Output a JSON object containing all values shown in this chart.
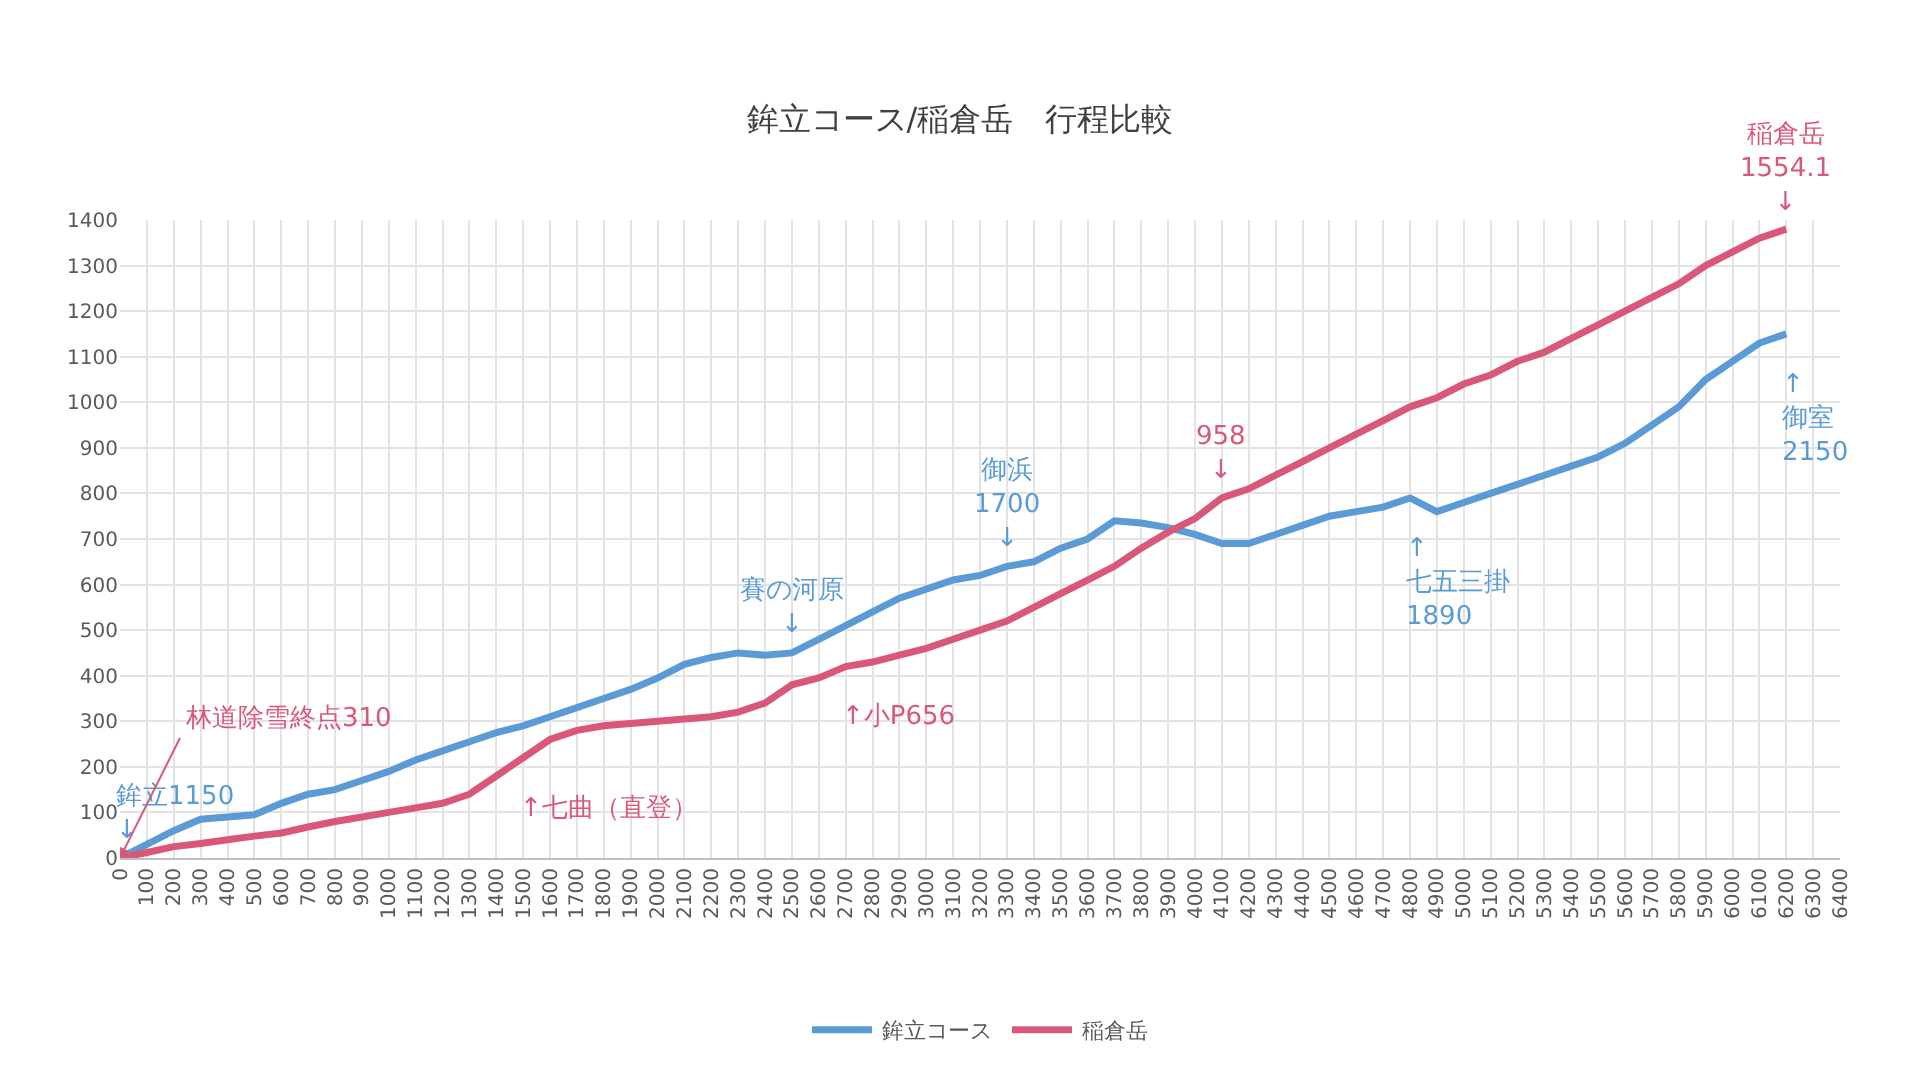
{
  "chart_data": {
    "type": "line",
    "title": "鉾立コース/稲倉岳　行程比較",
    "x": [
      0,
      100,
      200,
      300,
      400,
      500,
      600,
      700,
      800,
      900,
      1000,
      1100,
      1200,
      1300,
      1400,
      1500,
      1600,
      1700,
      1800,
      1900,
      2000,
      2100,
      2200,
      2300,
      2400,
      2500,
      2600,
      2700,
      2800,
      2900,
      3000,
      3100,
      3200,
      3300,
      3400,
      3500,
      3600,
      3700,
      3800,
      3900,
      4000,
      4100,
      4200,
      4300,
      4400,
      4500,
      4600,
      4700,
      4800,
      4900,
      5000,
      5100,
      5200,
      5300,
      5400,
      5500,
      5600,
      5700,
      5800,
      5900,
      6000,
      6100,
      6200
    ],
    "series": [
      {
        "name": "鉾立コース",
        "color": "#5b9bd5",
        "values": [
          0,
          30,
          60,
          85,
          90,
          95,
          120,
          140,
          150,
          170,
          190,
          215,
          235,
          255,
          275,
          290,
          310,
          330,
          350,
          370,
          395,
          425,
          440,
          450,
          445,
          450,
          480,
          510,
          540,
          570,
          590,
          610,
          620,
          640,
          650,
          680,
          700,
          740,
          735,
          725,
          710,
          690,
          690,
          710,
          730,
          750,
          760,
          770,
          790,
          760,
          780,
          800,
          820,
          840,
          860,
          880,
          910,
          950,
          990,
          1050,
          1090,
          1130,
          1150
        ]
      },
      {
        "name": "稲倉岳",
        "color": "#d9587a",
        "values": [
          0,
          12,
          25,
          32,
          40,
          48,
          55,
          68,
          80,
          90,
          100,
          110,
          120,
          140,
          180,
          220,
          260,
          280,
          290,
          295,
          300,
          305,
          310,
          320,
          340,
          380,
          395,
          420,
          430,
          445,
          460,
          480,
          500,
          520,
          550,
          580,
          610,
          640,
          680,
          715,
          745,
          790,
          810,
          840,
          870,
          900,
          930,
          960,
          990,
          1010,
          1040,
          1060,
          1090,
          1110,
          1140,
          1170,
          1200,
          1230,
          1260,
          1300,
          1330,
          1360,
          1380
        ]
      }
    ],
    "xlim": [
      0,
      6400
    ],
    "xticks": [
      0,
      100,
      200,
      300,
      400,
      500,
      600,
      700,
      800,
      900,
      1000,
      1100,
      1200,
      1300,
      1400,
      1500,
      1600,
      1700,
      1800,
      1900,
      2000,
      2100,
      2200,
      2300,
      2400,
      2500,
      2600,
      2700,
      2800,
      2900,
      3000,
      3100,
      3200,
      3300,
      3400,
      3500,
      3600,
      3700,
      3800,
      3900,
      4000,
      4100,
      4200,
      4300,
      4400,
      4500,
      4600,
      4700,
      4800,
      4900,
      5000,
      5100,
      5200,
      5300,
      5400,
      5500,
      5600,
      5700,
      5800,
      5900,
      6000,
      6100,
      6200,
      6300,
      6400
    ],
    "ylim": [
      0,
      1400
    ],
    "yticks": [
      0,
      100,
      200,
      300,
      400,
      500,
      600,
      700,
      800,
      900,
      1000,
      1100,
      1200,
      1300,
      1400
    ],
    "grid": true,
    "legend": "bottom",
    "marker": "none",
    "line_style": "solid",
    "annotations": [
      {
        "text": "鉾立1150\n↓",
        "x": 0,
        "y": 0
      },
      {
        "text": "林道除雪終点310",
        "x": 0,
        "y": 0
      },
      {
        "text": "↑七曲（直登）",
        "x": 1500,
        "y": 220
      },
      {
        "text": "賽の河原\n↓",
        "x": 2500,
        "y": 450
      },
      {
        "text": "↑小P656",
        "x": 2700,
        "y": 420
      },
      {
        "text": "御浜\n1700\n↓",
        "x": 3300,
        "y": 640
      },
      {
        "text": "958\n↓",
        "x": 4100,
        "y": 790
      },
      {
        "text": "↑\n七五三掛\n1890",
        "x": 4800,
        "y": 790
      },
      {
        "text": "稲倉岳\n1554.1\n↓",
        "x": 6200,
        "y": 1380
      },
      {
        "text": "↑\n御室\n2150",
        "x": 6200,
        "y": 1150
      }
    ]
  }
}
